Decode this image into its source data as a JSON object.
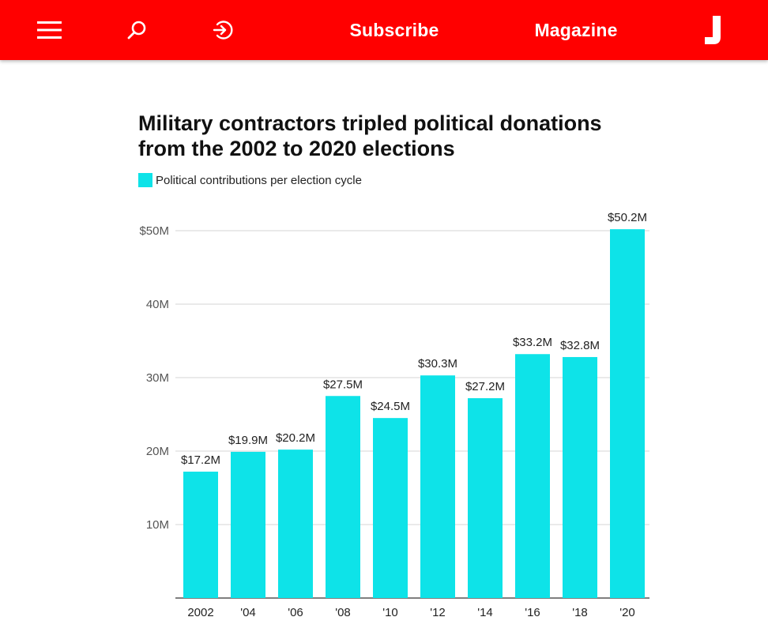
{
  "header": {
    "background_color": "#ff0000",
    "menu_icon": "hamburger-menu-icon",
    "search_icon": "search-icon",
    "login_icon": "sign-in-icon",
    "subscribe_label": "Subscribe",
    "magazine_label": "Magazine",
    "logo_icon": "jacobin-logo-icon"
  },
  "chart_data": {
    "type": "bar",
    "title": "Military contractors tripled political donations from the 2002 to 2020 elections",
    "legend": "Political contributions per election cycle",
    "legend_placement": "top-left",
    "categories": [
      "2002",
      "'04",
      "'06",
      "'08",
      "'10",
      "'12",
      "'14",
      "'16",
      "'18",
      "'20"
    ],
    "values": [
      17.2,
      19.9,
      20.2,
      27.5,
      24.5,
      30.3,
      27.2,
      33.2,
      32.8,
      50.2
    ],
    "data_labels": [
      "$17.2M",
      "$19.9M",
      "$20.2M",
      "$27.5M",
      "$24.5M",
      "$30.3M",
      "$27.2M",
      "$33.2M",
      "$32.8M",
      "$50.2M"
    ],
    "y_ticks": [
      10,
      20,
      30,
      40,
      50
    ],
    "y_tick_labels": [
      "10M",
      "20M",
      "30M",
      "40M",
      "$50M"
    ],
    "ylim": [
      0,
      50
    ],
    "grid": true,
    "bar_color": "#0ee3e8"
  }
}
